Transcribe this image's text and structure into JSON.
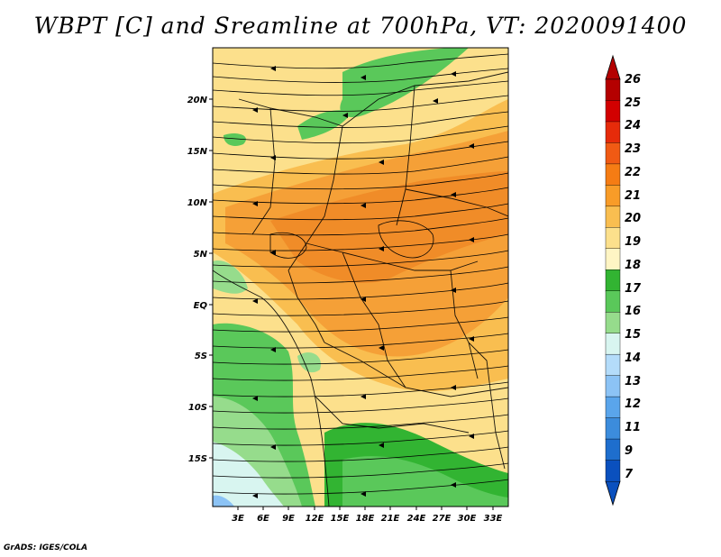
{
  "title": "WBPT [C] and Sreamline at 700hPa, VT: 2020091400",
  "credit": "GrADS: IGES/COLA",
  "map": {
    "lat_labels": [
      "20N",
      "15N",
      "10N",
      "5N",
      "EQ",
      "5S",
      "10S",
      "15S"
    ],
    "lon_labels": [
      "3E",
      "6E",
      "9E",
      "12E",
      "15E",
      "18E",
      "21E",
      "24E",
      "27E",
      "30E",
      "33E"
    ]
  },
  "colorbar": {
    "levels": [
      "26",
      "25",
      "24",
      "23",
      "22",
      "21",
      "20",
      "19",
      "18",
      "17",
      "16",
      "15",
      "14",
      "13",
      "12",
      "11",
      "9",
      "7"
    ],
    "colors": [
      "#b40000",
      "#d20000",
      "#e62b0a",
      "#f05a14",
      "#f57c14",
      "#f89c28",
      "#f9be50",
      "#fce08c",
      "#fff5c4",
      "#32b432",
      "#5ac85a",
      "#96dc8c",
      "#d8f5f0",
      "#b4dcfa",
      "#8cc3f5",
      "#5aa5eb",
      "#3c8cdc",
      "#1e6ecd",
      "#0a50be"
    ]
  },
  "icons": [
    "streamline-arrow-icon",
    "colorbar-arrow-top-icon",
    "colorbar-arrow-bottom-icon"
  ]
}
